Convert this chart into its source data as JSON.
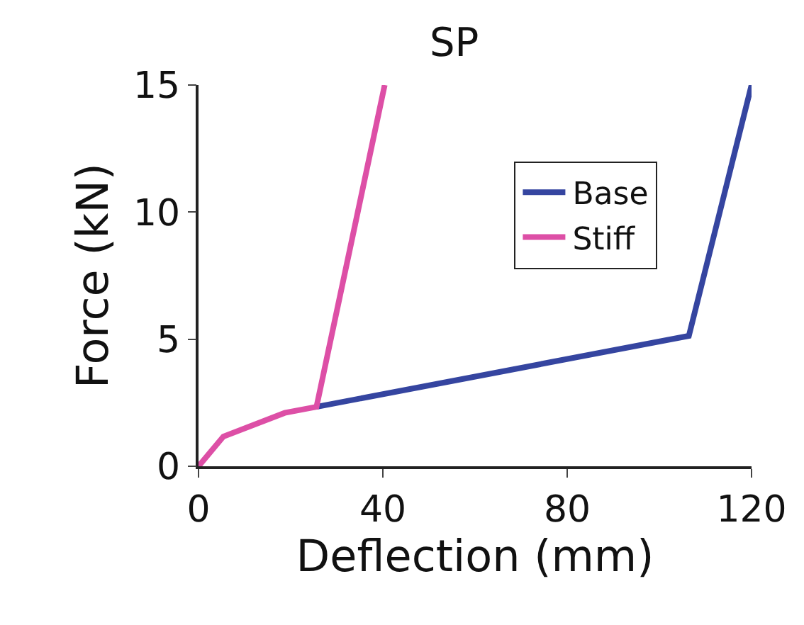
{
  "chart_data": {
    "type": "line",
    "title": "SP",
    "xlabel": "Deflection (mm)",
    "ylabel": "Force (kN)",
    "xlim": [
      0,
      120
    ],
    "xticks": [
      0,
      40,
      80,
      120
    ],
    "ylim": [
      0,
      15
    ],
    "yticks": [
      0,
      5,
      10,
      15
    ],
    "legend": "top right",
    "marker": "none",
    "line_style": "solid",
    "series": [
      {
        "name": "Base",
        "color": "#3545a0",
        "x": [
          25.6,
          106.4,
          120
        ],
        "values": [
          2.34,
          5.13,
          15
        ]
      },
      {
        "name": "Stiff",
        "color": "#dd4fa6",
        "x": [
          0,
          5.4,
          18.7,
          25.6,
          40.4
        ],
        "values": [
          0,
          1.17,
          2.1,
          2.34,
          15
        ]
      }
    ]
  }
}
